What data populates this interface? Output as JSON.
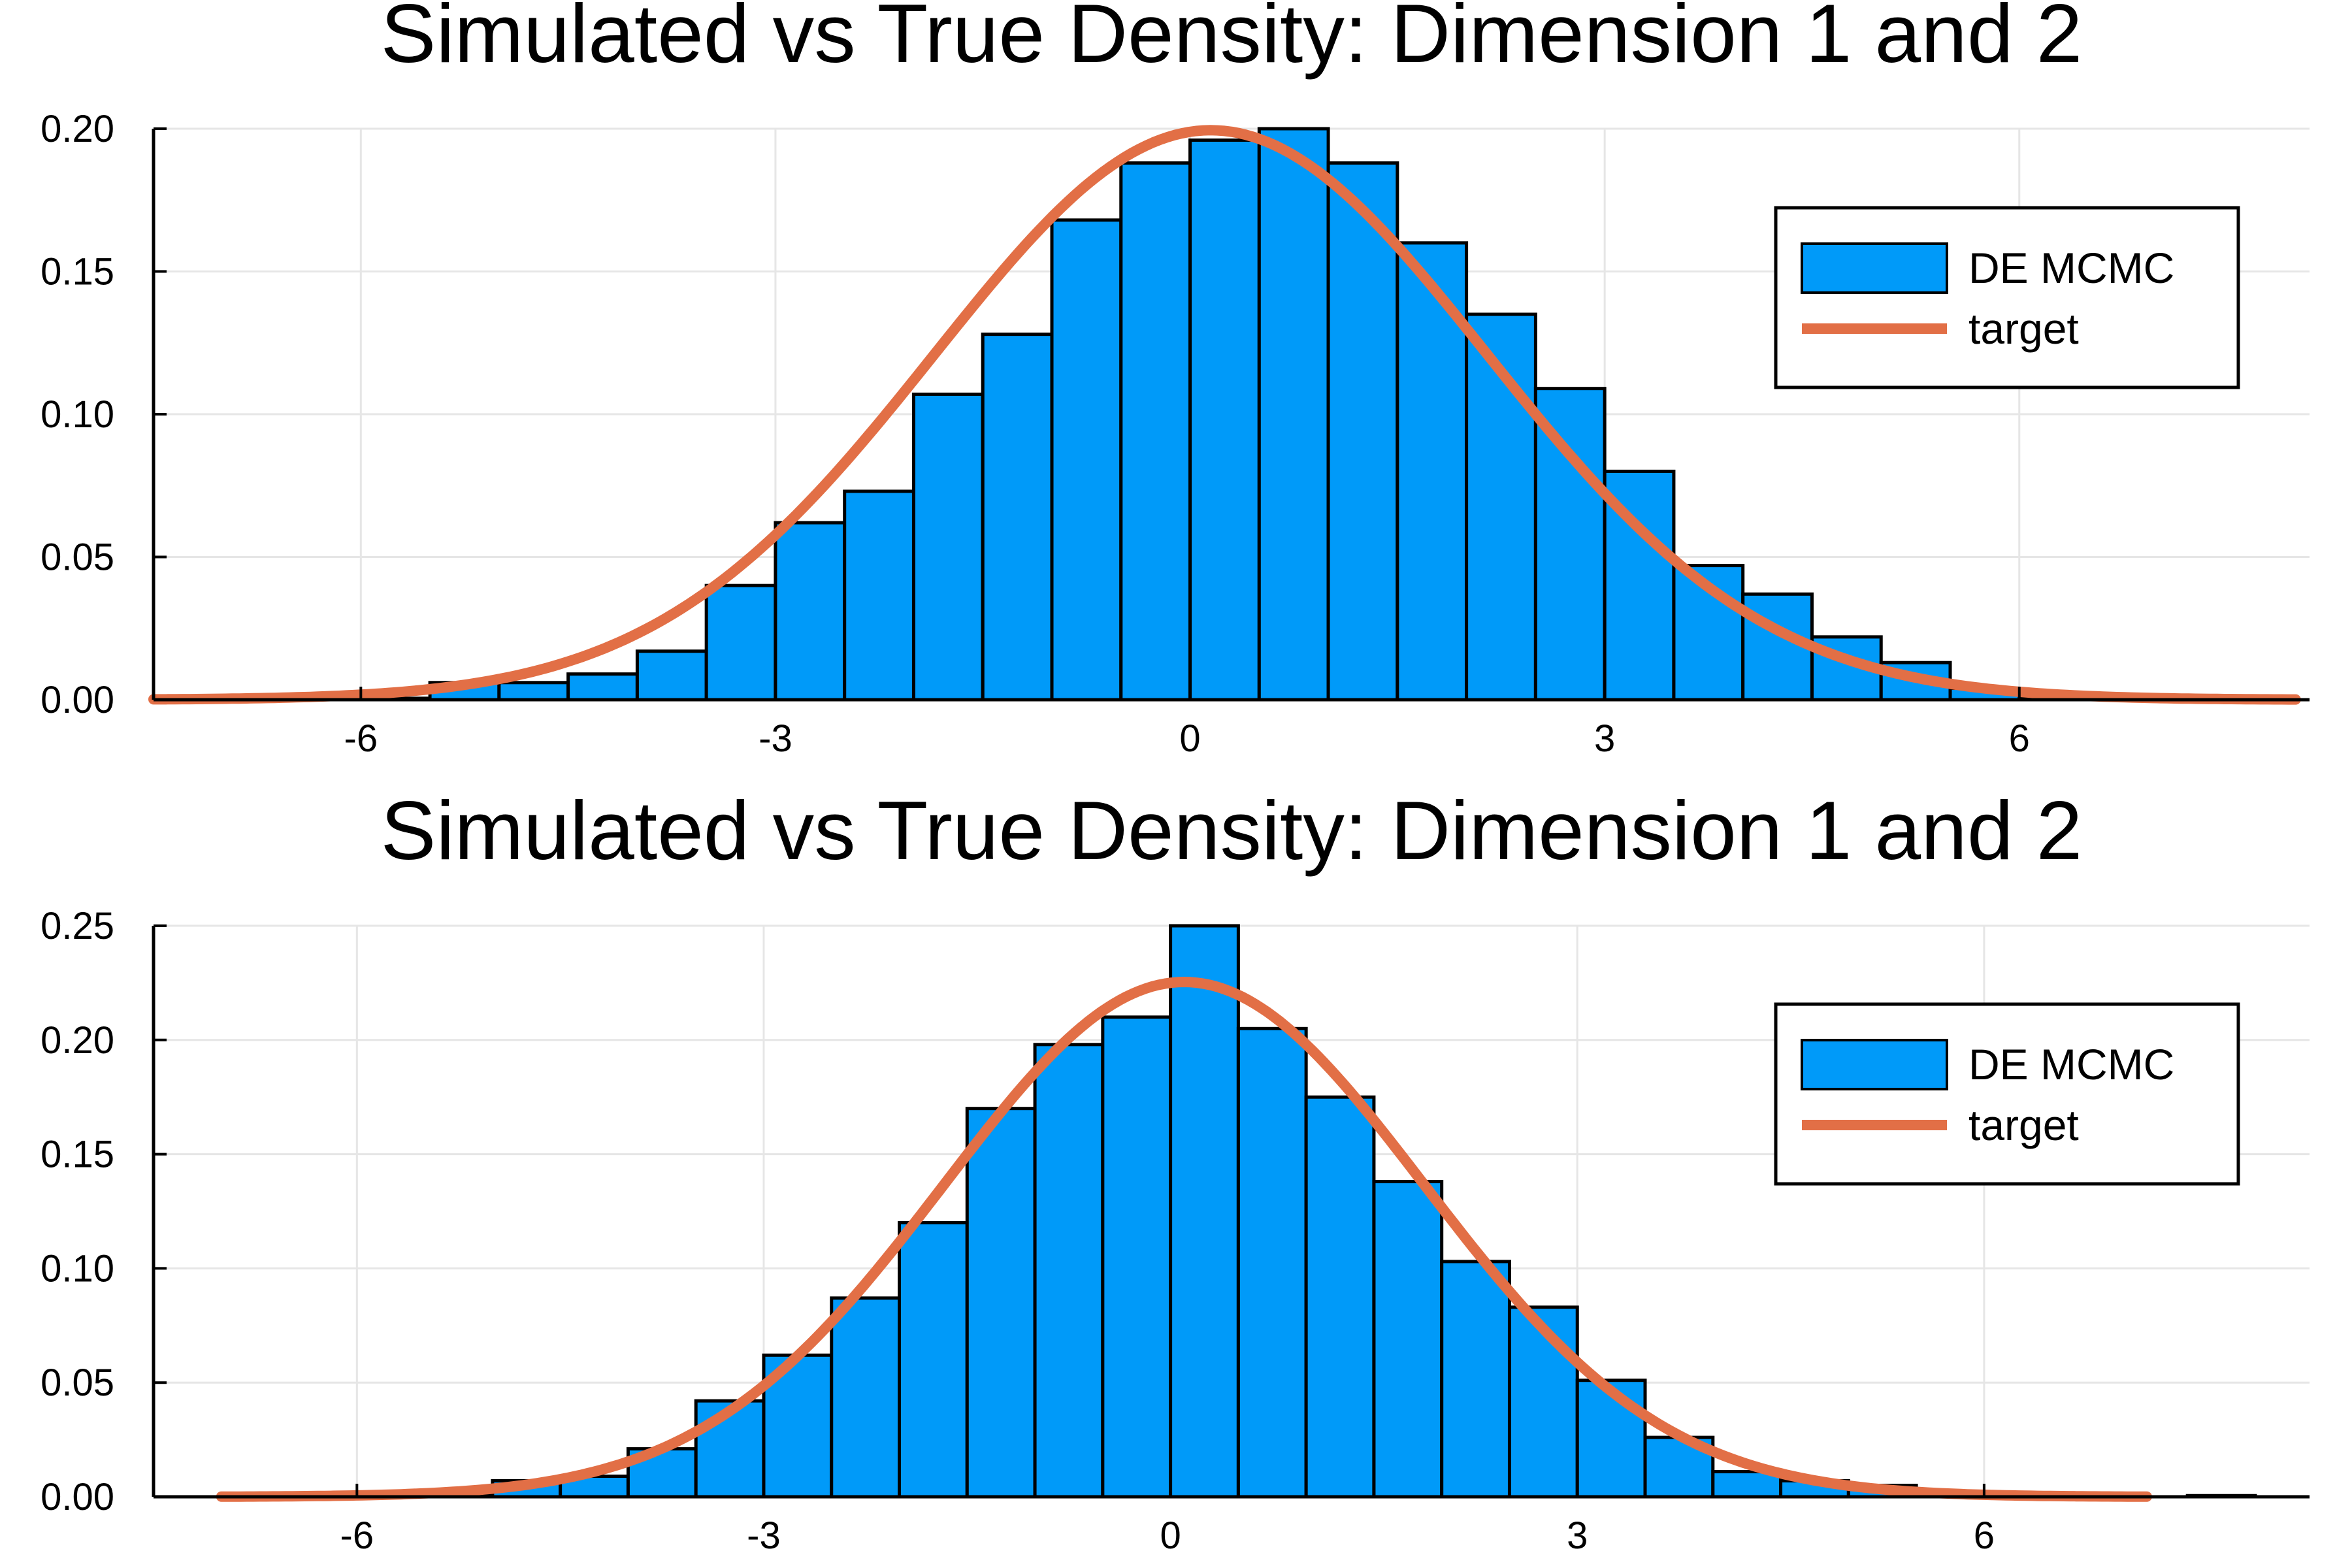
{
  "colors": {
    "histogram": "#009af9",
    "target": "#e26f46",
    "axis": "#000000",
    "grid": "#e6e6e6"
  },
  "chart_data": [
    {
      "type": "bar",
      "title": "Simulated vs True Density: Dimension 1 and 2",
      "xlabel": "",
      "ylabel": "",
      "xlim": [
        -7.5,
        8.1
      ],
      "ylim": [
        0,
        0.2
      ],
      "x_ticks": [
        -6,
        -3,
        0,
        3,
        6
      ],
      "x_tick_labels": [
        "-6",
        "-3",
        "0",
        "3",
        "6"
      ],
      "y_ticks": [
        0,
        0.05,
        0.1,
        0.15,
        0.2
      ],
      "y_tick_labels": [
        "0.00",
        "0.05",
        "0.10",
        "0.15",
        "0.20"
      ],
      "grid": true,
      "legend_position": "top-right",
      "legend": [
        "DE MCMC",
        "target"
      ],
      "bin_edges": [
        -7.5,
        -7.0,
        -6.5,
        -6.0,
        -5.5,
        -5.0,
        -4.5,
        -4.0,
        -3.5,
        -3.0,
        -2.5,
        -2.0,
        -1.5,
        -1.0,
        -0.5,
        0.0,
        0.5,
        1.0,
        1.5,
        2.0,
        2.5,
        3.0,
        3.5,
        4.0,
        4.5,
        5.0,
        5.5,
        6.0,
        6.5,
        7.0,
        7.5,
        8.0
      ],
      "series": [
        {
          "name": "DE MCMC",
          "kind": "histogram",
          "values": [
            0,
            0,
            0,
            0.0005,
            0.006,
            0.006,
            0.009,
            0.017,
            0.04,
            0.062,
            0.073,
            0.107,
            0.128,
            0.168,
            0.188,
            0.196,
            0.2,
            0.188,
            0.16,
            0.135,
            0.109,
            0.08,
            0.047,
            0.037,
            0.022,
            0.013,
            0.004,
            0.0005,
            0,
            0,
            0
          ]
        },
        {
          "name": "target",
          "kind": "normal-density",
          "mean": 0.15,
          "sd": 2.0,
          "x_range": [
            -7.5,
            8.0
          ]
        }
      ]
    },
    {
      "type": "bar",
      "title": "Simulated vs True Density: Dimension 1 and 2",
      "xlabel": "",
      "ylabel": "",
      "xlim": [
        -7.5,
        8.4
      ],
      "ylim": [
        0,
        0.25
      ],
      "x_ticks": [
        -6,
        -3,
        0,
        3,
        6
      ],
      "x_tick_labels": [
        "-6",
        "-3",
        "0",
        "3",
        "6"
      ],
      "y_ticks": [
        0,
        0.05,
        0.1,
        0.15,
        0.2,
        0.25
      ],
      "y_tick_labels": [
        "0.00",
        "0.05",
        "0.10",
        "0.15",
        "0.20",
        "0.25"
      ],
      "grid": true,
      "legend_position": "top-right",
      "legend": [
        "DE MCMC",
        "target"
      ],
      "bin_edges": [
        -7.0,
        -6.5,
        -6.0,
        -5.5,
        -5.0,
        -4.5,
        -4.0,
        -3.5,
        -3.0,
        -2.5,
        -2.0,
        -1.5,
        -1.0,
        -0.5,
        0.0,
        0.5,
        1.0,
        1.5,
        2.0,
        2.5,
        3.0,
        3.5,
        4.0,
        4.5,
        5.0,
        5.5,
        6.0,
        6.5,
        7.0,
        7.5,
        8.0
      ],
      "series": [
        {
          "name": "DE MCMC",
          "kind": "histogram",
          "values": [
            0,
            0.0005,
            0.0005,
            0.001,
            0.007,
            0.009,
            0.021,
            0.042,
            0.062,
            0.087,
            0.12,
            0.17,
            0.198,
            0.21,
            0.255,
            0.205,
            0.175,
            0.138,
            0.103,
            0.083,
            0.051,
            0.026,
            0.011,
            0.007,
            0.005,
            0.002,
            0.001,
            0.0005,
            0,
            0.0005
          ]
        },
        {
          "name": "target",
          "kind": "normal-density",
          "mean": 0.1,
          "sd": 1.77,
          "x_range": [
            -7.0,
            7.2
          ]
        }
      ]
    }
  ]
}
